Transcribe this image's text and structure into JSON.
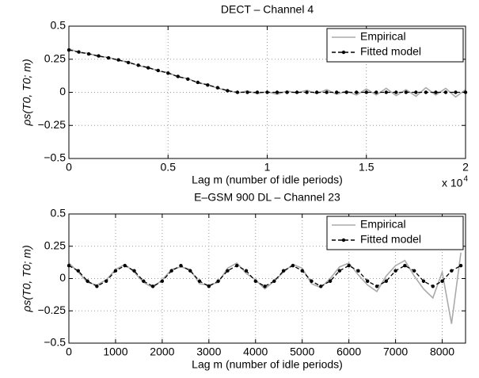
{
  "chart_data": [
    {
      "type": "line",
      "title": "DECT – Channel 4",
      "xlabel": "Lag m (number of idle periods)",
      "ylabel": "ρs(T0, T0; m)",
      "x_scale_label": "x 10",
      "x_scale_exponent": "4",
      "xlim": [
        0,
        2
      ],
      "xticks": [
        0,
        0.5,
        1,
        1.5,
        2
      ],
      "ylim": [
        -0.5,
        0.5
      ],
      "yticks": [
        {
          "value": -0.5,
          "label": "−0.5"
        },
        {
          "value": -0.25,
          "label": "−0.25"
        },
        0,
        0.25,
        0.5
      ],
      "grid": true,
      "legend": "upper right",
      "x": [
        0,
        0.05,
        0.1,
        0.15,
        0.2,
        0.25,
        0.3,
        0.35,
        0.4,
        0.45,
        0.5,
        0.55,
        0.6,
        0.65,
        0.7,
        0.75,
        0.8,
        0.85,
        0.9,
        0.95,
        1,
        1.05,
        1.1,
        1.15,
        1.2,
        1.25,
        1.3,
        1.35,
        1.4,
        1.45,
        1.5,
        1.55,
        1.6,
        1.65,
        1.7,
        1.75,
        1.8,
        1.85,
        1.9,
        1.95,
        2
      ],
      "series": [
        {
          "name": "Empirical",
          "color": "#aaaaaa",
          "linestyle": "solid",
          "marker": "none",
          "values": [
            0.33,
            0.3,
            0.295,
            0.27,
            0.265,
            0.24,
            0.23,
            0.2,
            0.19,
            0.16,
            0.15,
            0.115,
            0.105,
            0.07,
            0.06,
            0.03,
            0.015,
            -0.005,
            0.01,
            -0.01,
            0.005,
            -0.015,
            0.01,
            -0.005,
            0.015,
            -0.01,
            0.02,
            -0.015,
            0.01,
            -0.02,
            0.025,
            -0.02,
            0.03,
            -0.025,
            0.02,
            -0.03,
            0.035,
            -0.02,
            0.03,
            -0.035,
            0.02
          ]
        },
        {
          "name": "Fitted model",
          "color": "#000000",
          "linestyle": "dashed",
          "marker": "dot",
          "values": [
            0.32,
            0.305,
            0.29,
            0.275,
            0.26,
            0.245,
            0.225,
            0.205,
            0.185,
            0.165,
            0.145,
            0.12,
            0.1,
            0.075,
            0.055,
            0.035,
            0.012,
            0,
            0,
            0,
            0,
            0,
            0,
            0,
            0,
            0,
            0,
            0,
            0,
            0,
            0,
            0,
            0,
            0,
            0,
            0,
            0,
            0,
            0,
            0,
            0
          ]
        }
      ]
    },
    {
      "type": "line",
      "title": "E–GSM 900 DL – Channel 23",
      "xlabel": "Lag m (number of idle periods)",
      "ylabel": "ρs(T0, T0; m)",
      "xlim": [
        0,
        8500
      ],
      "xticks": [
        0,
        1000,
        2000,
        3000,
        4000,
        5000,
        6000,
        7000,
        8000
      ],
      "ylim": [
        -0.5,
        0.5
      ],
      "yticks": [
        {
          "value": -0.5,
          "label": "−0.5"
        },
        {
          "value": -0.25,
          "label": "−0.25"
        },
        0,
        0.25,
        0.5
      ],
      "grid": true,
      "legend": "upper right",
      "x": [
        0,
        200,
        400,
        600,
        800,
        1000,
        1200,
        1400,
        1600,
        1800,
        2000,
        2200,
        2400,
        2600,
        2800,
        3000,
        3200,
        3400,
        3600,
        3800,
        4000,
        4200,
        4400,
        4600,
        4800,
        5000,
        5200,
        5400,
        5600,
        5800,
        6000,
        6200,
        6400,
        6600,
        6800,
        7000,
        7200,
        7400,
        7600,
        7800,
        8000,
        8200,
        8400
      ],
      "series": [
        {
          "name": "Empirical",
          "color": "#aaaaaa",
          "linestyle": "solid",
          "marker": "none",
          "values": [
            0.12,
            0.05,
            -0.03,
            -0.05,
            -0.01,
            0.07,
            0.11,
            0.05,
            -0.03,
            -0.07,
            -0.01,
            0.07,
            0.09,
            0.07,
            -0.04,
            -0.05,
            -0.03,
            0.08,
            0.12,
            0.04,
            -0.01,
            -0.08,
            -0.02,
            0.05,
            0.11,
            0.08,
            -0.04,
            -0.07,
            0,
            0.09,
            0.12,
            0.03,
            -0.05,
            -0.1,
            0.02,
            0.1,
            0.14,
            0.02,
            -0.08,
            -0.15,
            0.05,
            -0.35,
            0.2
          ]
        },
        {
          "name": "Fitted model",
          "color": "#000000",
          "linestyle": "dashed",
          "marker": "dot",
          "values": [
            0.1,
            0.06,
            -0.02,
            -0.06,
            -0.02,
            0.06,
            0.1,
            0.06,
            -0.02,
            -0.06,
            -0.02,
            0.06,
            0.1,
            0.06,
            -0.02,
            -0.06,
            -0.02,
            0.06,
            0.1,
            0.06,
            -0.02,
            -0.06,
            -0.02,
            0.06,
            0.1,
            0.06,
            -0.02,
            -0.06,
            -0.02,
            0.06,
            0.1,
            0.06,
            -0.02,
            -0.06,
            -0.02,
            0.06,
            0.1,
            0.06,
            -0.02,
            -0.06,
            -0.02,
            0.06,
            0.1
          ]
        }
      ]
    }
  ]
}
